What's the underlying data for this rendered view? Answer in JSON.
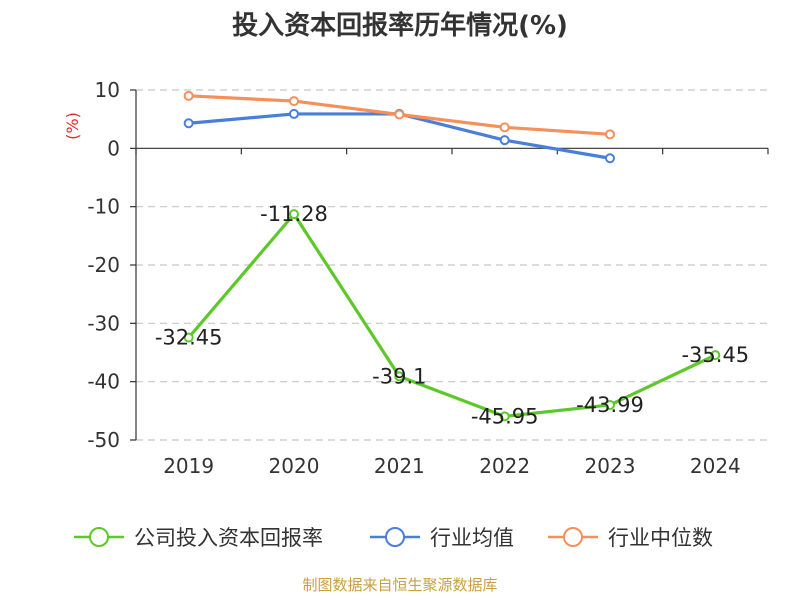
{
  "chart_data": {
    "type": "line",
    "title": "投入资本回报率历年情况(%)",
    "ylabel": "(%)",
    "xlabel": "",
    "categories": [
      "2019",
      "2020",
      "2021",
      "2022",
      "2023",
      "2024"
    ],
    "ylim": [
      -50,
      10
    ],
    "yticks": [
      10,
      0,
      -10,
      -20,
      -30,
      -40,
      -50
    ],
    "grid": true,
    "legend_position": "bottom",
    "series": [
      {
        "name": "公司投入资本回报率",
        "color": "#5cc82a",
        "values": [
          -32.45,
          -11.28,
          -39.1,
          -45.95,
          -43.99,
          -35.45
        ],
        "labels": [
          "-32.45",
          "-11.28",
          "-39.1",
          "-45.95",
          "-43.99",
          "-35.45"
        ]
      },
      {
        "name": "行业均值",
        "color": "#4a7fd9",
        "values": [
          4.3,
          5.9,
          5.9,
          1.4,
          -1.7,
          null
        ]
      },
      {
        "name": "行业中位数",
        "color": "#f5905a",
        "values": [
          9.0,
          8.1,
          5.8,
          3.6,
          2.4,
          null
        ]
      }
    ]
  },
  "source_note": "制图数据来自恒生聚源数据库"
}
